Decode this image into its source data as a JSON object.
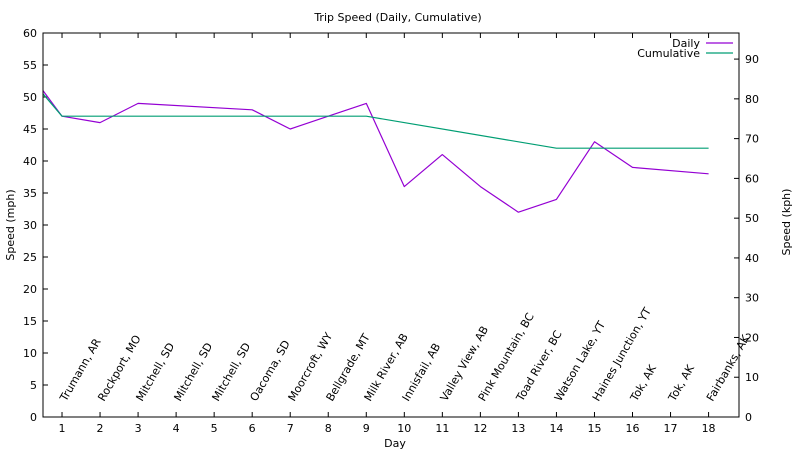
{
  "chart_data": {
    "type": "line",
    "title": "Trip Speed (Daily, Cumulative)",
    "xlabel": "Day",
    "ylabel": "Speed (mph)",
    "y2label": "Speed (kph)",
    "xlim": [
      0.5,
      18.8
    ],
    "ylim": [
      0,
      60
    ],
    "y2lim": [
      0,
      96.56
    ],
    "x_ticks": [
      1,
      2,
      3,
      4,
      5,
      6,
      7,
      8,
      9,
      10,
      11,
      12,
      13,
      14,
      15,
      16,
      17,
      18
    ],
    "y_ticks": [
      0,
      5,
      10,
      15,
      20,
      25,
      30,
      35,
      40,
      45,
      50,
      55,
      60
    ],
    "y2_ticks": [
      0,
      10,
      20,
      30,
      40,
      50,
      60,
      70,
      80,
      90
    ],
    "legend_position": "top-right",
    "grid": false,
    "locations": [
      "Trumann, AR",
      "Rockport, MO",
      "Mitchell, SD",
      "Mitchell, SD",
      "Mitchell, SD",
      "Oacoma, SD",
      "Moorcroft, WY",
      "Bellgrade, MT",
      "Milk River, AB",
      "Innisfail, AB",
      "Valley View, AB",
      "Pink Mountain, BC",
      "Toad River, BC",
      "Watson Lake, YT",
      "Haines Junction, YT",
      "Tok, AK",
      "Tok, AK",
      "Fairbanks, AK"
    ],
    "series": [
      {
        "name": "Daily",
        "color": "#9400d3",
        "x": [
          0.5,
          1,
          2,
          3,
          6,
          7,
          8,
          9,
          10,
          11,
          12,
          13,
          14,
          15,
          16,
          18
        ],
        "values": [
          51,
          47,
          46,
          49,
          48,
          45,
          47,
          49,
          36,
          41,
          36,
          32,
          34,
          43,
          39,
          38
        ]
      },
      {
        "name": "Cumulative",
        "color": "#009e73",
        "x": [
          0.5,
          1,
          9,
          14,
          18
        ],
        "values": [
          50.5,
          47,
          47,
          42,
          42
        ]
      }
    ]
  }
}
